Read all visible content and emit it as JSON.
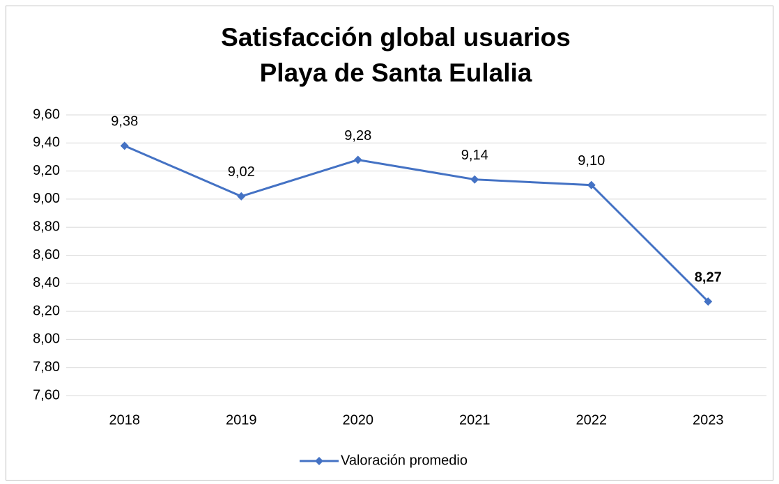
{
  "chart_data": {
    "type": "line",
    "title": "Satisfacción global usuarios",
    "subtitle": "Playa de Santa Eulalia",
    "categories": [
      "2018",
      "2019",
      "2020",
      "2021",
      "2022",
      "2023"
    ],
    "series": [
      {
        "name": "Valoración promedio",
        "color": "#4472c4",
        "values": [
          9.38,
          9.02,
          9.28,
          9.14,
          9.1,
          8.27
        ],
        "value_labels": [
          "9,38",
          "9,02",
          "9,28",
          "9,14",
          "9,10",
          "8,27"
        ]
      }
    ],
    "ylim": [
      7.6,
      9.6
    ],
    "yticks": [
      {
        "value": 7.6,
        "label": "7,60"
      },
      {
        "value": 7.8,
        "label": "7,80"
      },
      {
        "value": 8.0,
        "label": "8,00"
      },
      {
        "value": 8.2,
        "label": "8,20"
      },
      {
        "value": 8.4,
        "label": "8,40"
      },
      {
        "value": 8.6,
        "label": "8,60"
      },
      {
        "value": 8.8,
        "label": "8,80"
      },
      {
        "value": 9.0,
        "label": "9,00"
      },
      {
        "value": 9.2,
        "label": "9,20"
      },
      {
        "value": 9.4,
        "label": "9,40"
      },
      {
        "value": 9.6,
        "label": "9,60"
      }
    ],
    "grid": true,
    "legend": "bottom"
  }
}
